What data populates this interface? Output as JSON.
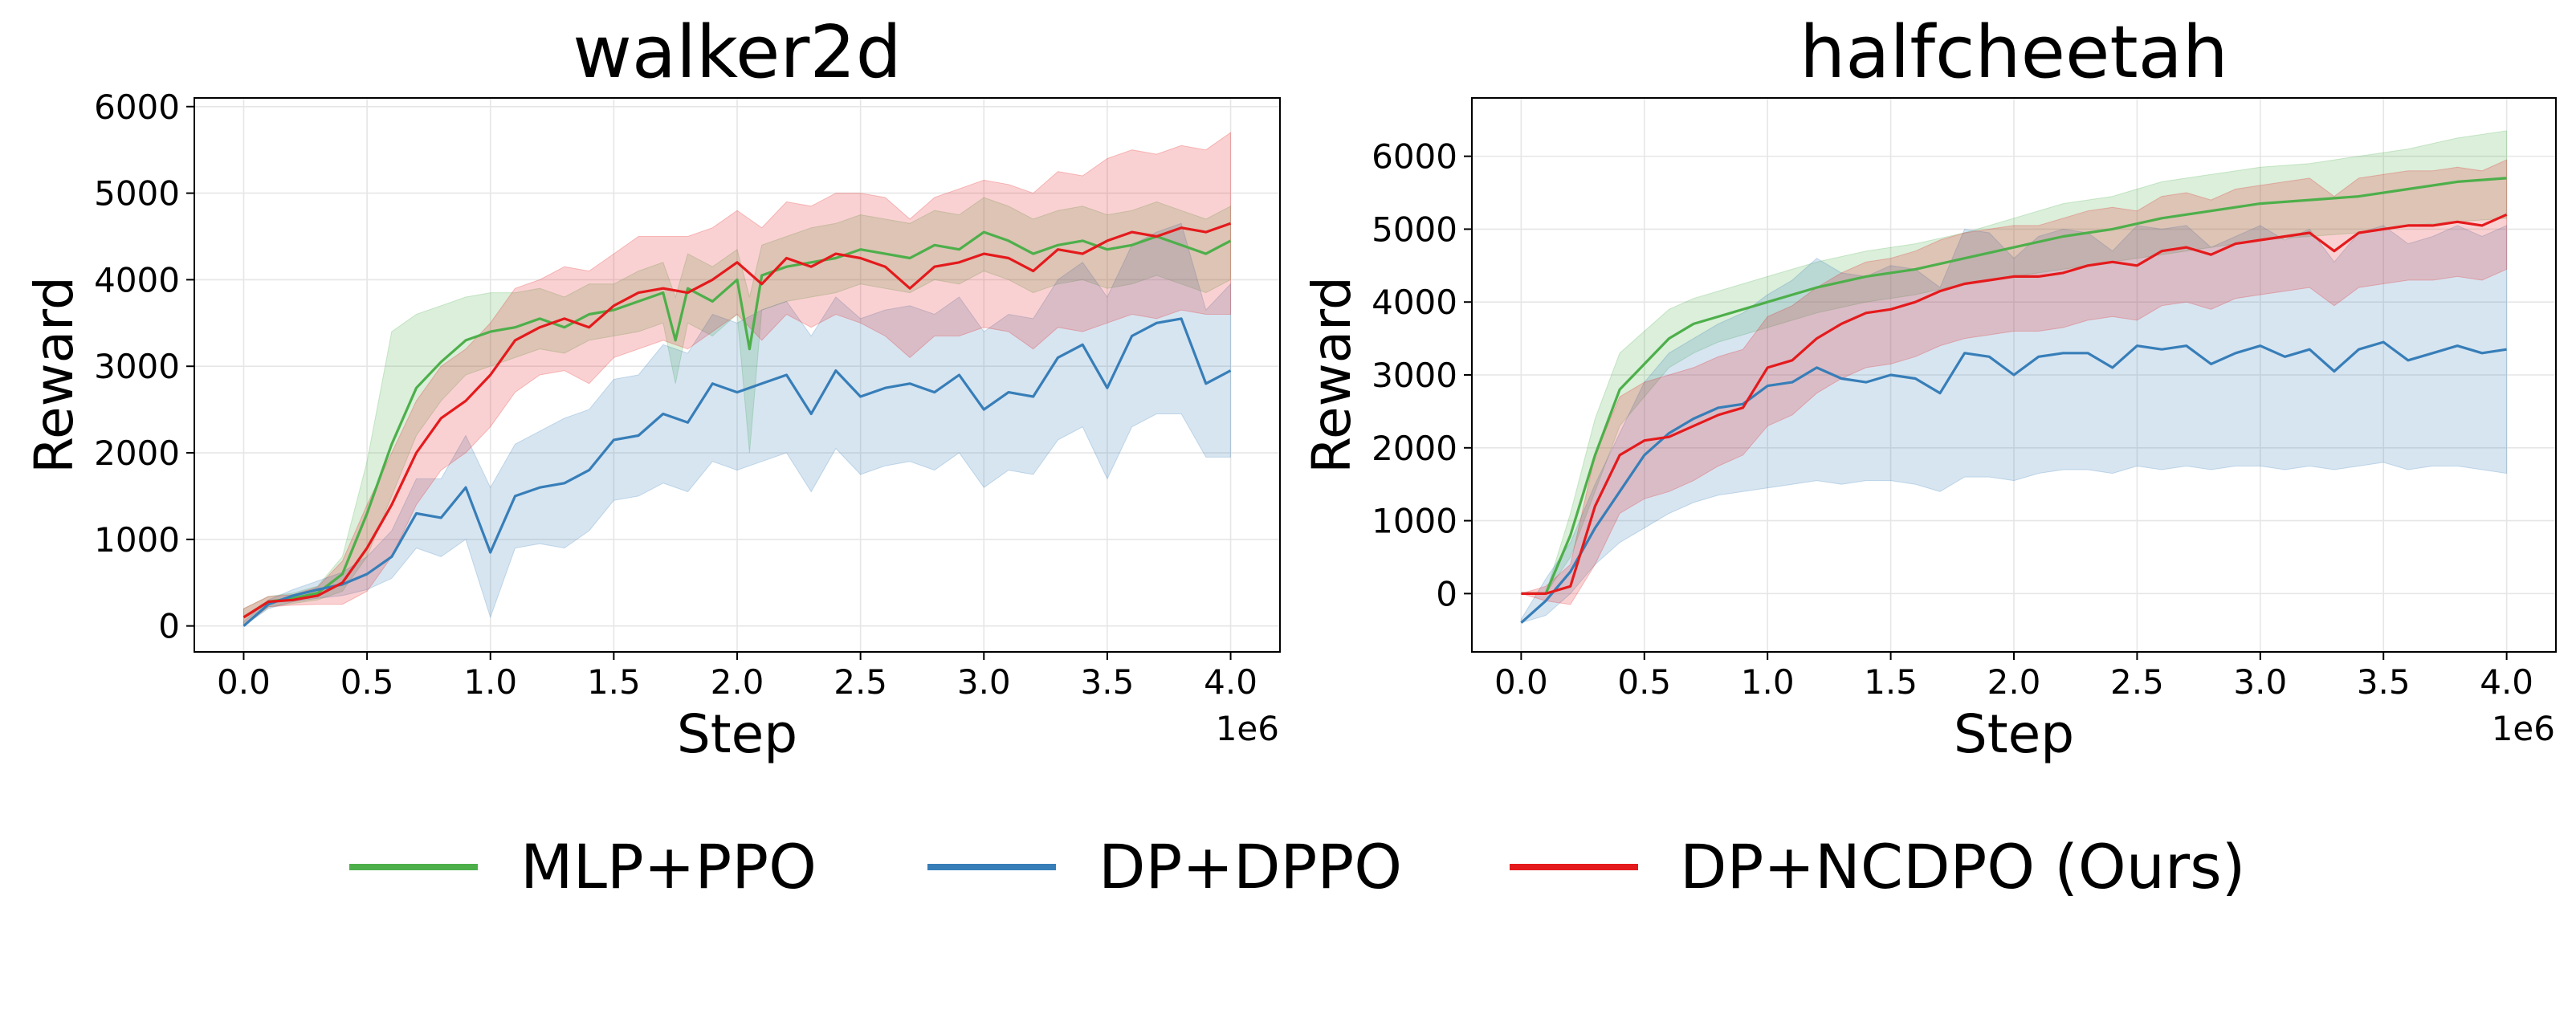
{
  "chart_data": [
    {
      "type": "line",
      "title": "walker2d",
      "xlabel": "Step",
      "ylabel": "Reward",
      "x_offset_label": "1e6",
      "xlim": [
        -0.2,
        4.2
      ],
      "ylim": [
        -300,
        6100
      ],
      "xticks": [
        0.0,
        0.5,
        1.0,
        1.5,
        2.0,
        2.5,
        3.0,
        3.5,
        4.0
      ],
      "xtick_labels": [
        "0.0",
        "0.5",
        "1.0",
        "1.5",
        "2.0",
        "2.5",
        "3.0",
        "3.5",
        "4.0"
      ],
      "yticks": [
        0,
        1000,
        2000,
        3000,
        4000,
        5000,
        6000
      ],
      "ytick_labels": [
        "0",
        "1000",
        "2000",
        "3000",
        "4000",
        "5000",
        "6000"
      ],
      "grid": true,
      "series": [
        {
          "name": "MLP+PPO",
          "color": "#4daf4a",
          "x": [
            0.0,
            0.1,
            0.2,
            0.3,
            0.4,
            0.5,
            0.6,
            0.7,
            0.8,
            0.9,
            1.0,
            1.1,
            1.2,
            1.3,
            1.4,
            1.5,
            1.6,
            1.7,
            1.75,
            1.8,
            1.9,
            2.0,
            2.05,
            2.1,
            2.2,
            2.3,
            2.4,
            2.5,
            2.6,
            2.7,
            2.8,
            2.9,
            3.0,
            3.1,
            3.2,
            3.3,
            3.4,
            3.5,
            3.6,
            3.7,
            3.8,
            3.9,
            4.0
          ],
          "y": [
            100,
            280,
            320,
            380,
            600,
            1300,
            2100,
            2750,
            3050,
            3300,
            3400,
            3450,
            3550,
            3450,
            3600,
            3650,
            3750,
            3850,
            3300,
            3900,
            3750,
            4000,
            3200,
            4050,
            4150,
            4200,
            4250,
            4350,
            4300,
            4250,
            4400,
            4350,
            4550,
            4450,
            4300,
            4400,
            4450,
            4350,
            4400,
            4500,
            4400,
            4300,
            4450
          ],
          "lower": [
            0,
            220,
            260,
            300,
            400,
            800,
            1500,
            2200,
            2600,
            2900,
            3000,
            3100,
            3200,
            3150,
            3300,
            3350,
            3400,
            3500,
            2800,
            3500,
            3350,
            3600,
            2000,
            3650,
            3750,
            3800,
            3850,
            3950,
            3900,
            3850,
            4000,
            3950,
            4100,
            4000,
            3850,
            3950,
            4000,
            3900,
            3950,
            4050,
            3950,
            3850,
            4000
          ],
          "upper": [
            200,
            340,
            380,
            460,
            800,
            1900,
            3400,
            3600,
            3700,
            3800,
            3850,
            3850,
            3900,
            3800,
            3950,
            3950,
            4100,
            4200,
            3800,
            4300,
            4150,
            4350,
            3800,
            4400,
            4500,
            4600,
            4650,
            4750,
            4700,
            4650,
            4800,
            4750,
            4950,
            4850,
            4700,
            4800,
            4850,
            4750,
            4800,
            4900,
            4800,
            4700,
            4850
          ]
        },
        {
          "name": "DP+DPPO",
          "color": "#377eb8",
          "x": [
            0.0,
            0.1,
            0.2,
            0.3,
            0.4,
            0.5,
            0.6,
            0.7,
            0.8,
            0.9,
            1.0,
            1.1,
            1.2,
            1.3,
            1.4,
            1.5,
            1.6,
            1.7,
            1.8,
            1.9,
            2.0,
            2.1,
            2.2,
            2.3,
            2.4,
            2.5,
            2.6,
            2.7,
            2.8,
            2.9,
            3.0,
            3.1,
            3.2,
            3.3,
            3.4,
            3.5,
            3.6,
            3.7,
            3.8,
            3.9,
            4.0
          ],
          "y": [
            0,
            250,
            350,
            420,
            480,
            600,
            800,
            1300,
            1250,
            1600,
            850,
            1500,
            1600,
            1650,
            1800,
            2150,
            2200,
            2450,
            2350,
            2800,
            2700,
            2800,
            2900,
            2450,
            2950,
            2650,
            2750,
            2800,
            2700,
            2900,
            2500,
            2700,
            2650,
            3100,
            3250,
            2750,
            3350,
            3500,
            3550,
            2800,
            2950
          ],
          "lower": [
            0,
            200,
            280,
            320,
            350,
            420,
            550,
            900,
            800,
            1000,
            100,
            900,
            950,
            900,
            1100,
            1450,
            1500,
            1650,
            1550,
            1900,
            1800,
            1900,
            2000,
            1550,
            2050,
            1750,
            1850,
            1900,
            1800,
            2000,
            1600,
            1800,
            1750,
            2150,
            2300,
            1700,
            2300,
            2450,
            2450,
            1950,
            1950
          ],
          "upper": [
            50,
            300,
            420,
            520,
            620,
            800,
            1100,
            1700,
            1700,
            2200,
            1600,
            2100,
            2250,
            2400,
            2500,
            2850,
            2900,
            3250,
            3150,
            3600,
            3500,
            3650,
            3750,
            3350,
            3800,
            3550,
            3650,
            3700,
            3600,
            3800,
            3400,
            3600,
            3550,
            4000,
            4200,
            3800,
            4400,
            4550,
            4650,
            3650,
            3950
          ]
        },
        {
          "name": "DP+NCDPO (Ours)",
          "color": "#e41a1c",
          "x": [
            0.0,
            0.1,
            0.2,
            0.3,
            0.4,
            0.5,
            0.6,
            0.7,
            0.8,
            0.9,
            1.0,
            1.1,
            1.2,
            1.3,
            1.4,
            1.5,
            1.6,
            1.7,
            1.8,
            1.9,
            2.0,
            2.1,
            2.2,
            2.3,
            2.4,
            2.5,
            2.6,
            2.7,
            2.8,
            2.9,
            3.0,
            3.1,
            3.2,
            3.3,
            3.4,
            3.5,
            3.6,
            3.7,
            3.8,
            3.9,
            4.0
          ],
          "y": [
            100,
            280,
            300,
            350,
            500,
            900,
            1400,
            2000,
            2400,
            2600,
            2900,
            3300,
            3450,
            3550,
            3450,
            3700,
            3850,
            3900,
            3850,
            4000,
            4200,
            3950,
            4250,
            4150,
            4300,
            4250,
            4150,
            3900,
            4150,
            4200,
            4300,
            4250,
            4100,
            4350,
            4300,
            4450,
            4550,
            4500,
            4600,
            4550,
            4650
          ],
          "lower": [
            0,
            220,
            240,
            250,
            250,
            400,
            800,
            1400,
            1800,
            2000,
            2300,
            2700,
            2900,
            2950,
            2800,
            3100,
            3200,
            3300,
            3200,
            3400,
            3600,
            3300,
            3600,
            3450,
            3600,
            3500,
            3350,
            3100,
            3350,
            3350,
            3450,
            3400,
            3200,
            3450,
            3400,
            3500,
            3600,
            3550,
            3650,
            3600,
            3600
          ],
          "upper": [
            200,
            340,
            360,
            450,
            750,
            1400,
            2000,
            2600,
            3000,
            3200,
            3500,
            3900,
            4000,
            4150,
            4100,
            4300,
            4500,
            4500,
            4500,
            4600,
            4800,
            4600,
            4900,
            4850,
            5000,
            5000,
            4950,
            4700,
            4950,
            5050,
            5150,
            5100,
            5000,
            5250,
            5200,
            5400,
            5500,
            5450,
            5550,
            5500,
            5700
          ]
        }
      ]
    },
    {
      "type": "line",
      "title": "halfcheetah",
      "xlabel": "Step",
      "ylabel": "Reward",
      "x_offset_label": "1e6",
      "xlim": [
        -0.2,
        4.2
      ],
      "ylim": [
        -800,
        6800
      ],
      "xticks": [
        0.0,
        0.5,
        1.0,
        1.5,
        2.0,
        2.5,
        3.0,
        3.5,
        4.0
      ],
      "xtick_labels": [
        "0.0",
        "0.5",
        "1.0",
        "1.5",
        "2.0",
        "2.5",
        "3.0",
        "3.5",
        "4.0"
      ],
      "yticks": [
        0,
        1000,
        2000,
        3000,
        4000,
        5000,
        6000
      ],
      "ytick_labels": [
        "0",
        "1000",
        "2000",
        "3000",
        "4000",
        "5000",
        "6000"
      ],
      "grid": true,
      "series": [
        {
          "name": "MLP+PPO",
          "color": "#4daf4a",
          "x": [
            0.0,
            0.1,
            0.2,
            0.3,
            0.4,
            0.5,
            0.6,
            0.7,
            0.8,
            0.9,
            1.0,
            1.2,
            1.4,
            1.6,
            1.8,
            2.0,
            2.2,
            2.4,
            2.6,
            2.8,
            3.0,
            3.2,
            3.4,
            3.6,
            3.8,
            4.0
          ],
          "y": [
            0,
            0,
            800,
            1900,
            2800,
            3150,
            3500,
            3700,
            3800,
            3900,
            4000,
            4200,
            4350,
            4450,
            4600,
            4750,
            4900,
            5000,
            5150,
            5250,
            5350,
            5400,
            5450,
            5550,
            5650,
            5700
          ],
          "lower": [
            0,
            0,
            500,
            1400,
            2300,
            2700,
            3100,
            3300,
            3450,
            3550,
            3650,
            3850,
            4000,
            4100,
            4250,
            4350,
            4450,
            4550,
            4650,
            4750,
            4850,
            4900,
            4950,
            5050,
            5100,
            5150
          ],
          "upper": [
            0,
            0,
            1100,
            2400,
            3300,
            3600,
            3900,
            4050,
            4150,
            4250,
            4350,
            4550,
            4700,
            4800,
            4950,
            5150,
            5350,
            5450,
            5650,
            5750,
            5850,
            5900,
            6000,
            6100,
            6250,
            6350
          ]
        },
        {
          "name": "DP+DPPO",
          "color": "#377eb8",
          "x": [
            0.0,
            0.1,
            0.2,
            0.3,
            0.4,
            0.5,
            0.6,
            0.7,
            0.8,
            0.9,
            1.0,
            1.1,
            1.2,
            1.3,
            1.4,
            1.5,
            1.6,
            1.7,
            1.8,
            1.9,
            2.0,
            2.1,
            2.2,
            2.3,
            2.4,
            2.5,
            2.6,
            2.7,
            2.8,
            2.9,
            3.0,
            3.1,
            3.2,
            3.3,
            3.4,
            3.5,
            3.6,
            3.7,
            3.8,
            3.9,
            4.0
          ],
          "y": [
            -400,
            -100,
            300,
            900,
            1400,
            1900,
            2200,
            2400,
            2550,
            2600,
            2850,
            2900,
            3100,
            2950,
            2900,
            3000,
            2950,
            2750,
            3300,
            3250,
            3000,
            3250,
            3300,
            3300,
            3100,
            3400,
            3350,
            3400,
            3150,
            3300,
            3400,
            3250,
            3350,
            3050,
            3350,
            3450,
            3200,
            3300,
            3400,
            3300,
            3350
          ],
          "lower": [
            -400,
            -300,
            0,
            400,
            700,
            900,
            1100,
            1250,
            1350,
            1400,
            1450,
            1500,
            1550,
            1500,
            1550,
            1550,
            1500,
            1400,
            1600,
            1600,
            1550,
            1650,
            1700,
            1700,
            1650,
            1750,
            1700,
            1750,
            1700,
            1750,
            1750,
            1700,
            1750,
            1700,
            1750,
            1800,
            1700,
            1750,
            1750,
            1700,
            1650
          ],
          "upper": [
            -350,
            200,
            700,
            1500,
            2200,
            2900,
            3300,
            3500,
            3700,
            3850,
            4100,
            4300,
            4600,
            4400,
            4350,
            4500,
            4450,
            4200,
            5000,
            4950,
            4600,
            4900,
            5000,
            4950,
            4700,
            5050,
            5000,
            5050,
            4750,
            4900,
            5050,
            4850,
            5000,
            4550,
            4950,
            5050,
            4800,
            4900,
            5050,
            4900,
            5050
          ]
        },
        {
          "name": "DP+NCDPO (Ours)",
          "color": "#e41a1c",
          "x": [
            0.0,
            0.1,
            0.2,
            0.3,
            0.4,
            0.5,
            0.6,
            0.7,
            0.8,
            0.9,
            1.0,
            1.1,
            1.2,
            1.3,
            1.4,
            1.5,
            1.6,
            1.7,
            1.8,
            1.9,
            2.0,
            2.1,
            2.2,
            2.3,
            2.4,
            2.5,
            2.6,
            2.7,
            2.8,
            2.9,
            3.0,
            3.1,
            3.2,
            3.3,
            3.4,
            3.5,
            3.6,
            3.7,
            3.8,
            3.9,
            4.0
          ],
          "y": [
            0,
            0,
            100,
            1200,
            1900,
            2100,
            2150,
            2300,
            2450,
            2550,
            3100,
            3200,
            3500,
            3700,
            3850,
            3900,
            4000,
            4150,
            4250,
            4300,
            4350,
            4350,
            4400,
            4500,
            4550,
            4500,
            4700,
            4750,
            4650,
            4800,
            4850,
            4900,
            4950,
            4700,
            4950,
            5000,
            5050,
            5050,
            5100,
            5050,
            5200
          ],
          "lower": [
            0,
            -100,
            -150,
            400,
            1100,
            1300,
            1400,
            1550,
            1750,
            1900,
            2300,
            2450,
            2750,
            2950,
            3100,
            3150,
            3250,
            3400,
            3500,
            3550,
            3600,
            3600,
            3650,
            3750,
            3800,
            3750,
            3950,
            4000,
            3900,
            4050,
            4100,
            4150,
            4200,
            3950,
            4200,
            4250,
            4300,
            4300,
            4350,
            4300,
            4450
          ],
          "upper": [
            0,
            100,
            400,
            1900,
            2700,
            2900,
            3000,
            3100,
            3250,
            3350,
            3800,
            3950,
            4200,
            4400,
            4550,
            4600,
            4700,
            4850,
            4950,
            5000,
            5050,
            5050,
            5150,
            5250,
            5300,
            5250,
            5450,
            5500,
            5400,
            5550,
            5600,
            5650,
            5700,
            5450,
            5700,
            5750,
            5800,
            5800,
            5850,
            5800,
            5950
          ]
        }
      ]
    }
  ],
  "legend": [
    {
      "label": "MLP+PPO",
      "color": "#4daf4a"
    },
    {
      "label": "DP+DPPO",
      "color": "#377eb8"
    },
    {
      "label": "DP+NCDPO (Ours)",
      "color": "#e41a1c"
    }
  ]
}
